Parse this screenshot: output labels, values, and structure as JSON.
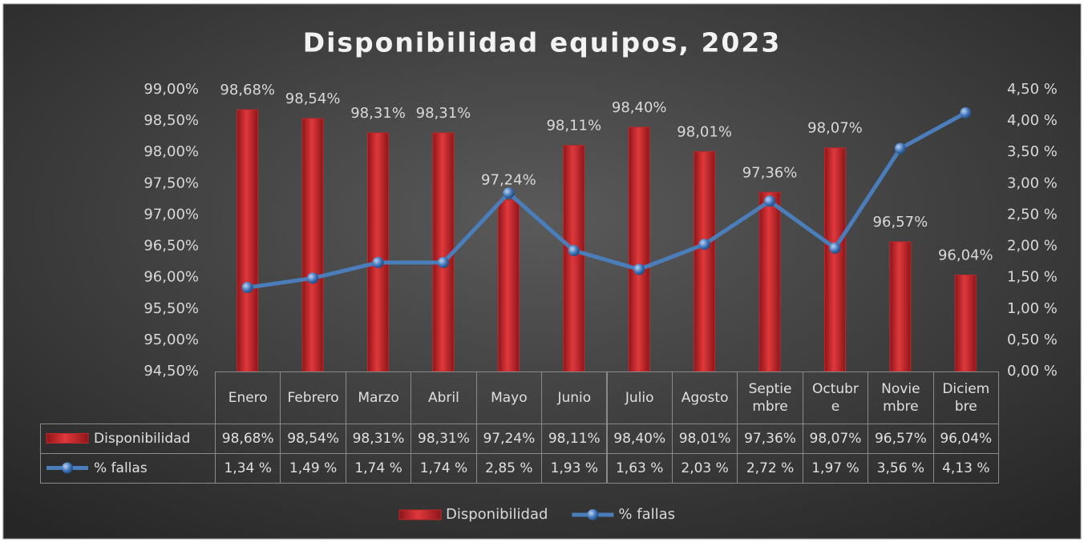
{
  "chart_data": {
    "type": "bar_line_table",
    "title": "Disponibilidad equipos, 2023",
    "categories": [
      "Enero",
      "Febrero",
      "Marzo",
      "Abril",
      "Mayo",
      "Junio",
      "Julio",
      "Agosto",
      "Septiembre",
      "Octubre",
      "Noviembre",
      "Diciembre"
    ],
    "series": [
      {
        "name": "Disponibilidad",
        "type": "bar",
        "color": "#c0282b",
        "values": [
          98.68,
          98.54,
          98.31,
          98.31,
          97.24,
          98.11,
          98.4,
          98.01,
          97.36,
          98.07,
          96.57,
          96.04
        ],
        "value_labels": [
          "98,68%",
          "98,54%",
          "98,31%",
          "98,31%",
          "97,24%",
          "98,11%",
          "98,40%",
          "98,01%",
          "97,36%",
          "98,07%",
          "96,57%",
          "96,04%"
        ]
      },
      {
        "name": "% fallas",
        "type": "line",
        "axis": "y2",
        "color": "#4a7ebb",
        "values": [
          1.34,
          1.49,
          1.74,
          1.74,
          2.85,
          1.93,
          1.63,
          2.03,
          2.72,
          1.97,
          3.56,
          4.13
        ],
        "value_labels": [
          "1,34 %",
          "1,49 %",
          "1,74 %",
          "1,74 %",
          "2,85 %",
          "1,93 %",
          "1,63 %",
          "2,03 %",
          "2,72 %",
          "1,97 %",
          "3,56 %",
          "4,13 %"
        ]
      }
    ],
    "ylim": [
      94.5,
      99
    ],
    "yticks": [
      {
        "value": 94.5,
        "label": "94,50%"
      },
      {
        "value": 95,
        "label": "95,00%"
      },
      {
        "value": 95.5,
        "label": "95,50%"
      },
      {
        "value": 96,
        "label": "96,00%"
      },
      {
        "value": 96.5,
        "label": "96,50%"
      },
      {
        "value": 97,
        "label": "97,00%"
      },
      {
        "value": 97.5,
        "label": "97,50%"
      },
      {
        "value": 98,
        "label": "98,00%"
      },
      {
        "value": 98.5,
        "label": "98,50%"
      },
      {
        "value": 99,
        "label": "99,00%"
      }
    ],
    "y2lim": [
      0,
      4.5
    ],
    "y2ticks": [
      {
        "value": 0,
        "label": "0,00 %"
      },
      {
        "value": 0.5,
        "label": "0,50 %"
      },
      {
        "value": 1,
        "label": "1,00 %"
      },
      {
        "value": 1.5,
        "label": "1,50 %"
      },
      {
        "value": 2,
        "label": "2,00 %"
      },
      {
        "value": 2.5,
        "label": "2,50 %"
      },
      {
        "value": 3,
        "label": "3,00 %"
      },
      {
        "value": 3.5,
        "label": "3,50 %"
      },
      {
        "value": 4,
        "label": "4,00 %"
      },
      {
        "value": 4.5,
        "label": "4,50 %"
      }
    ],
    "grid": false,
    "legend": "bottom"
  }
}
